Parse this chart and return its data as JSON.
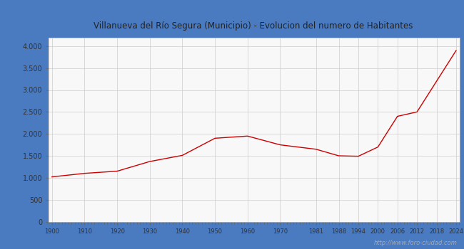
{
  "title": "Villanueva del Río Segura (Municipio) - Evolucion del numero de Habitantes",
  "title_color": "#222222",
  "outer_bg_color": "#4a7abf",
  "plot_bg_color": "#f0f0f0",
  "inner_bg_color": "#f8f8f8",
  "line_color": "#cc0000",
  "grid_color": "#cccccc",
  "footer_text": "http://www.foro-ciudad.com",
  "footer_color": "#aaaaaa",
  "years": [
    1900,
    1910,
    1920,
    1930,
    1940,
    1950,
    1960,
    1970,
    1981,
    1988,
    1994,
    2000,
    2006,
    2012,
    2018,
    2024
  ],
  "population": [
    1020,
    1100,
    1150,
    1370,
    1510,
    1900,
    1950,
    1750,
    1650,
    1500,
    1490,
    1700,
    2400,
    2500,
    3200,
    3900
  ],
  "xticks": [
    1900,
    1910,
    1920,
    1930,
    1940,
    1950,
    1960,
    1970,
    1981,
    1988,
    1994,
    2000,
    2006,
    2012,
    2018,
    2024
  ],
  "yticks": [
    0,
    500,
    1000,
    1500,
    2000,
    2500,
    3000,
    3500,
    4000
  ],
  "ylim": [
    0,
    4200
  ],
  "xlim": [
    1899,
    2025
  ]
}
